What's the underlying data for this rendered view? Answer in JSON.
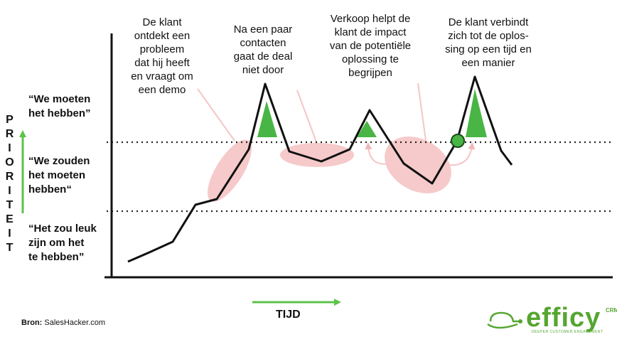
{
  "annotations": [
    {
      "lines": [
        "De klant",
        "ontdekt een",
        "probleem",
        "dat hij heeft",
        "en vraagt om",
        "een demo"
      ]
    },
    {
      "lines": [
        "Na een paar",
        "contacten",
        "gaat de deal",
        "niet door"
      ]
    },
    {
      "lines": [
        "Verkoop helpt de",
        "klant de impact",
        "van de potentiële",
        "oplossing te",
        "begrijpen"
      ]
    },
    {
      "lines": [
        "De klant verbindt",
        "zich tot de oplos-",
        "sing op een tijd en",
        "een manier"
      ]
    }
  ],
  "levels": [
    {
      "lines": [
        "“We moeten",
        "het hebben”"
      ]
    },
    {
      "lines": [
        "“We zouden",
        "het moeten",
        "hebben“"
      ]
    },
    {
      "lines": [
        "“Het zou leuk",
        "zijn om het",
        "te hebben”"
      ]
    }
  ],
  "y_axis_label": "PRIORITEIT",
  "x_axis_label": "TIJD",
  "source": {
    "label": "Bron:",
    "text": "SalesHacker.com"
  },
  "logo": {
    "name": "efficy",
    "suffix": "CRM",
    "tagline": "DEEPER CUSTOMER ENGAGEMENT"
  }
}
